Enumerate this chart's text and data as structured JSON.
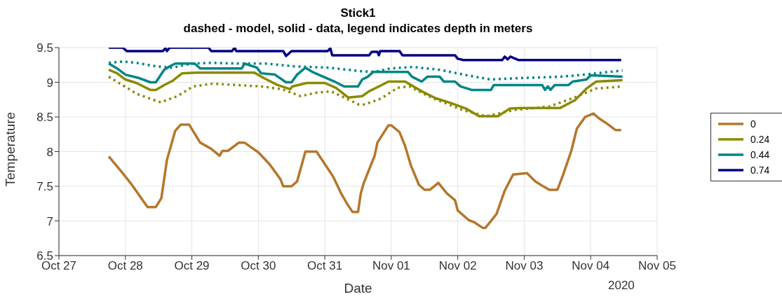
{
  "chart_data": {
    "type": "line",
    "title": "Stick1",
    "subtitle": "dashed - model, solid - data, legend indicates depth in meters",
    "xlabel": "Date",
    "ylabel": "Temperature",
    "annotations": [
      "2020"
    ],
    "xlim": [
      "2020-10-27",
      "2020-11-05"
    ],
    "xticks": [
      {
        "value": "2020-10-27",
        "label": "Oct 27"
      },
      {
        "value": "2020-10-28",
        "label": "Oct 28"
      },
      {
        "value": "2020-10-29",
        "label": "Oct 29"
      },
      {
        "value": "2020-10-30",
        "label": "Oct 30"
      },
      {
        "value": "2020-10-31",
        "label": "Oct 31"
      },
      {
        "value": "2020-11-01",
        "label": "Nov 01"
      },
      {
        "value": "2020-11-02",
        "label": "Nov 02"
      },
      {
        "value": "2020-11-03",
        "label": "Nov 03"
      },
      {
        "value": "2020-11-04",
        "label": "Nov 04"
      },
      {
        "value": "2020-11-05",
        "label": "Nov 05"
      }
    ],
    "ylim": [
      6.5,
      9.5
    ],
    "yticks": [
      6.5,
      7,
      7.5,
      8,
      8.5,
      9,
      9.5
    ],
    "grid": true,
    "legend": "right",
    "series": [
      {
        "name": "0",
        "color": "#b5762b",
        "line_style": "solid",
        "x": [
          "2020-10-27T18:00",
          "2020-10-27T23:00",
          "2020-10-28T02:00",
          "2020-10-28T08:00",
          "2020-10-28T11:00",
          "2020-10-28T13:00",
          "2020-10-28T15:00",
          "2020-10-28T18:00",
          "2020-10-28T20:00",
          "2020-10-28T23:00",
          "2020-10-29T03:00",
          "2020-10-29T07:00",
          "2020-10-29T10:00",
          "2020-10-29T11:00",
          "2020-10-29T13:00",
          "2020-10-29T17:00",
          "2020-10-29T19:00",
          "2020-10-30T00:00",
          "2020-10-30T04:00",
          "2020-10-30T08:00",
          "2020-10-30T09:00",
          "2020-10-30T12:00",
          "2020-10-30T14:00",
          "2020-10-30T17:00",
          "2020-10-30T21:00",
          "2020-10-31T00:00",
          "2020-10-31T03:00",
          "2020-10-31T06:00",
          "2020-10-31T08:00",
          "2020-10-31T10:00",
          "2020-10-31T12:00",
          "2020-10-31T13:00",
          "2020-10-31T14:00",
          "2020-10-31T18:00",
          "2020-10-31T19:00",
          "2020-10-31T23:00",
          "2020-11-01T00:00",
          "2020-11-01T03:00",
          "2020-11-01T05:00",
          "2020-11-01T07:00",
          "2020-11-01T10:00",
          "2020-11-01T12:00",
          "2020-11-01T14:00",
          "2020-11-01T17:00",
          "2020-11-01T20:00",
          "2020-11-01T23:00",
          "2020-11-02T00:00",
          "2020-11-02T04:00",
          "2020-11-02T06:00",
          "2020-11-02T09:00",
          "2020-11-02T10:00",
          "2020-11-02T14:00",
          "2020-11-02T17:00",
          "2020-11-02T20:00",
          "2020-11-03T01:00",
          "2020-11-03T04:00",
          "2020-11-03T06:00",
          "2020-11-03T09:00",
          "2020-11-03T12:00",
          "2020-11-03T14:00",
          "2020-11-03T17:00",
          "2020-11-03T19:00",
          "2020-11-03T22:00",
          "2020-11-04T01:00",
          "2020-11-04T03:00",
          "2020-11-04T06:00",
          "2020-11-04T09:00",
          "2020-11-04T11:00"
        ],
        "values": [
          7.93,
          7.69,
          7.54,
          7.2,
          7.2,
          7.33,
          7.88,
          8.3,
          8.39,
          8.39,
          8.13,
          8.04,
          7.94,
          8.01,
          8.01,
          8.13,
          8.13,
          7.99,
          7.82,
          7.6,
          7.5,
          7.5,
          7.57,
          8.0,
          8.0,
          7.82,
          7.64,
          7.39,
          7.25,
          7.13,
          7.13,
          7.4,
          7.54,
          7.94,
          8.13,
          8.38,
          8.38,
          8.28,
          8.08,
          7.81,
          7.52,
          7.45,
          7.45,
          7.55,
          7.4,
          7.3,
          7.15,
          7.01,
          6.98,
          6.9,
          6.9,
          7.1,
          7.44,
          7.67,
          7.69,
          7.57,
          7.52,
          7.45,
          7.45,
          7.66,
          8.01,
          8.33,
          8.5,
          8.55,
          8.48,
          8.4,
          8.31,
          8.31
        ]
      },
      {
        "name": "0.24",
        "color": "#8a8a00",
        "line_style": "solid",
        "x": [
          "2020-10-27T18:00",
          "2020-10-27T21:00",
          "2020-10-28T00:00",
          "2020-10-28T04:00",
          "2020-10-28T09:00",
          "2020-10-28T11:00",
          "2020-10-28T14:00",
          "2020-10-28T17:00",
          "2020-10-28T20:30",
          "2020-10-29T01:30",
          "2020-10-29T22:30",
          "2020-10-30T02:00",
          "2020-10-30T07:00",
          "2020-10-30T11:30",
          "2020-10-30T12:15",
          "2020-10-30T17:30",
          "2020-10-31T00:00",
          "2020-10-31T04:00",
          "2020-10-31T08:30",
          "2020-10-31T13:30",
          "2020-10-31T16:00",
          "2020-10-31T20:30",
          "2020-10-31T23:00",
          "2020-11-01T05:00",
          "2020-11-01T11:00",
          "2020-11-01T16:00",
          "2020-11-01T21:30",
          "2020-11-02T03:00",
          "2020-11-02T07:45",
          "2020-11-02T14:30",
          "2020-11-02T18:45",
          "2020-11-02T23:00",
          "2020-11-03T13:00",
          "2020-11-03T18:15",
          "2020-11-03T22:30",
          "2020-11-04T02:00",
          "2020-11-04T11:30"
        ],
        "values": [
          9.18,
          9.13,
          9.04,
          8.99,
          8.89,
          8.89,
          8.96,
          9.02,
          9.13,
          9.14,
          9.14,
          9.06,
          8.96,
          8.9,
          8.94,
          8.99,
          8.99,
          8.92,
          8.78,
          8.8,
          8.87,
          8.96,
          9.01,
          9.01,
          8.87,
          8.77,
          8.7,
          8.62,
          8.51,
          8.51,
          8.62,
          8.63,
          8.63,
          8.74,
          8.91,
          9.01,
          9.03
        ]
      },
      {
        "name": "0.44",
        "color": "#008585",
        "line_style": "solid",
        "x": [
          "2020-10-27T18:00",
          "2020-10-27T21:00",
          "2020-10-28T00:00",
          "2020-10-28T05:00",
          "2020-10-28T09:00",
          "2020-10-28T11:00",
          "2020-10-28T14:00",
          "2020-10-28T16:00",
          "2020-10-28T18:00",
          "2020-10-29T01:00",
          "2020-10-29T03:00",
          "2020-10-29T18:00",
          "2020-10-29T19:00",
          "2020-10-29T23:30",
          "2020-10-30T01:00",
          "2020-10-30T06:00",
          "2020-10-30T10:00",
          "2020-10-30T12:00",
          "2020-10-30T14:00",
          "2020-10-30T17:00",
          "2020-10-30T20:00",
          "2020-10-31T03:00",
          "2020-10-31T07:00",
          "2020-10-31T12:00",
          "2020-10-31T13:30",
          "2020-10-31T15:30",
          "2020-10-31T17:30",
          "2020-11-01T06:00",
          "2020-11-01T07:30",
          "2020-11-01T11:00",
          "2020-11-01T13:00",
          "2020-11-01T17:30",
          "2020-11-01T19:00",
          "2020-11-01T23:00",
          "2020-11-02T01:00",
          "2020-11-02T05:00",
          "2020-11-02T12:00",
          "2020-11-02T13:00",
          "2020-11-03T06:30",
          "2020-11-03T07:30",
          "2020-11-03T08:30",
          "2020-11-03T09:30",
          "2020-11-03T11:00",
          "2020-11-03T16:00",
          "2020-11-03T17:30",
          "2020-11-03T22:30",
          "2020-11-04T00:00",
          "2020-11-04T11:30"
        ],
        "values": [
          9.27,
          9.2,
          9.11,
          9.06,
          9.0,
          9.0,
          9.18,
          9.23,
          9.27,
          9.27,
          9.2,
          9.2,
          9.27,
          9.21,
          9.13,
          9.11,
          9.0,
          9.0,
          9.11,
          9.21,
          9.14,
          9.02,
          8.94,
          8.94,
          9.04,
          9.08,
          9.15,
          9.15,
          9.08,
          9.01,
          9.08,
          9.08,
          9.01,
          9.01,
          8.94,
          8.89,
          8.89,
          8.96,
          8.96,
          8.89,
          8.94,
          8.89,
          8.96,
          8.96,
          9.01,
          9.04,
          9.1,
          9.08
        ]
      },
      {
        "name": "0.74",
        "color": "#000085",
        "line_style": "solid",
        "x": [
          "2020-10-27T18:00",
          "2020-10-27T23:00",
          "2020-10-28T00:30",
          "2020-10-28T13:30",
          "2020-10-28T14:30",
          "2020-10-28T15:00",
          "2020-10-28T16:00",
          "2020-10-29T06:00",
          "2020-10-29T07:00",
          "2020-10-29T14:30",
          "2020-10-29T15:30",
          "2020-10-29T16:00",
          "2020-10-30T09:00",
          "2020-10-30T10:00",
          "2020-10-30T12:00",
          "2020-10-31T01:00",
          "2020-10-31T02:00",
          "2020-10-31T02:40",
          "2020-10-31T16:00",
          "2020-10-31T17:00",
          "2020-10-31T19:00",
          "2020-10-31T19:30",
          "2020-10-31T20:00",
          "2020-11-01T03:00",
          "2020-11-01T04:00",
          "2020-11-01T23:00",
          "2020-11-02T00:00",
          "2020-11-02T02:00",
          "2020-11-02T16:00",
          "2020-11-02T17:00",
          "2020-11-02T18:00",
          "2020-11-02T19:00",
          "2020-11-02T22:00",
          "2020-11-04T11:00"
        ],
        "values": [
          9.5,
          9.5,
          9.45,
          9.45,
          9.49,
          9.45,
          9.5,
          9.5,
          9.45,
          9.45,
          9.5,
          9.45,
          9.45,
          9.38,
          9.45,
          9.45,
          9.49,
          9.39,
          9.39,
          9.44,
          9.44,
          9.39,
          9.45,
          9.45,
          9.39,
          9.39,
          9.34,
          9.32,
          9.32,
          9.37,
          9.33,
          9.37,
          9.32,
          9.32
        ]
      },
      {
        "color": "#8a8a00",
        "line_style": "dotted",
        "x": [
          "2020-10-27T18:00",
          "2020-10-27T22:30",
          "2020-10-28T04:15",
          "2020-10-28T12:45",
          "2020-10-28T18:45",
          "2020-10-29T00:30",
          "2020-10-29T07:30",
          "2020-10-29T16:30",
          "2020-10-30T01:15",
          "2020-10-30T08:30",
          "2020-10-30T15:15",
          "2020-10-30T21:00",
          "2020-10-31T02:15",
          "2020-10-31T12:15",
          "2020-10-31T14:30",
          "2020-10-31T20:30",
          "2020-11-01T02:15",
          "2020-11-01T06:30",
          "2020-11-01T15:00",
          "2020-11-02T01:45",
          "2020-11-02T10:15",
          "2020-11-02T20:30",
          "2020-11-03T09:00",
          "2020-11-03T17:30",
          "2020-11-04T02:00",
          "2020-11-04T11:30"
        ],
        "values": [
          9.08,
          8.97,
          8.83,
          8.71,
          8.8,
          8.94,
          8.98,
          8.96,
          8.94,
          8.9,
          8.8,
          8.85,
          8.87,
          8.68,
          8.68,
          8.77,
          8.92,
          8.94,
          8.77,
          8.6,
          8.51,
          8.6,
          8.65,
          8.77,
          8.91,
          8.94
        ]
      },
      {
        "color": "#008585",
        "line_style": "dotted",
        "x": [
          "2020-10-27T18:00",
          "2020-10-27T23:00",
          "2020-10-28T04:00",
          "2020-10-28T11:00",
          "2020-10-28T17:00",
          "2020-10-28T23:45",
          "2020-10-29T07:30",
          "2020-10-29T16:30",
          "2020-10-30T02:30",
          "2020-10-30T12:45",
          "2020-10-31T01:30",
          "2020-10-31T13:00",
          "2020-10-31T17:45",
          "2020-10-31T23:45",
          "2020-11-01T08:00",
          "2020-11-01T17:30",
          "2020-11-02T03:30",
          "2020-11-02T12:00",
          "2020-11-02T22:00",
          "2020-11-03T13:00",
          "2020-11-03T21:30",
          "2020-11-04T11:30"
        ],
        "values": [
          9.28,
          9.3,
          9.28,
          9.23,
          9.21,
          9.27,
          9.28,
          9.27,
          9.27,
          9.23,
          9.21,
          9.16,
          9.15,
          9.2,
          9.22,
          9.18,
          9.1,
          9.04,
          9.06,
          9.08,
          9.11,
          9.17
        ]
      }
    ]
  }
}
